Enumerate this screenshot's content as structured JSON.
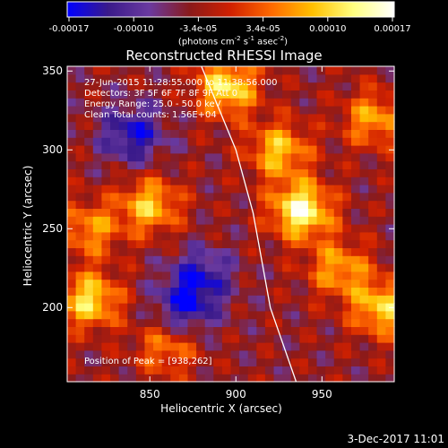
{
  "colorbar": {
    "tick_labels": [
      "-0.00017",
      "-0.00010",
      "-3.4e-05",
      "3.4e-05",
      "0.00010",
      "0.00017"
    ],
    "units_prefix": "(photons cm",
    "units_exp1": "-2",
    "units_mid1": " s",
    "units_exp2": "-1",
    "units_mid2": " asec",
    "units_exp3": "-2",
    "units_suffix": ")",
    "range": [
      -0.00017,
      0.00017
    ]
  },
  "chart_data": {
    "type": "heatmap",
    "title": "Reconstructed RHESSI Image",
    "xlabel": "Heliocentric X (arcsec)",
    "ylabel": "Heliocentric Y (arcsec)",
    "xlim": [
      802,
      992
    ],
    "ylim": [
      153,
      353
    ],
    "xticks": [
      850,
      900,
      950
    ],
    "yticks": [
      200,
      250,
      300,
      350
    ],
    "colormap": [
      "#0000ff",
      "#3a1a8a",
      "#6a3aa0",
      "#8a1a1a",
      "#d02000",
      "#ff6a00",
      "#ffc000",
      "#ffff80",
      "#ffffff"
    ],
    "sources": [
      {
        "x": 938,
        "y": 262,
        "amplitude": 1.0
      },
      {
        "x": 925,
        "y": 300,
        "amplitude": 0.7
      },
      {
        "x": 895,
        "y": 340,
        "amplitude": 0.85
      },
      {
        "x": 960,
        "y": 225,
        "amplitude": 0.6
      },
      {
        "x": 850,
        "y": 265,
        "amplitude": 0.7
      },
      {
        "x": 815,
        "y": 205,
        "amplitude": 0.8
      },
      {
        "x": 815,
        "y": 250,
        "amplitude": 0.55
      },
      {
        "x": 860,
        "y": 175,
        "amplitude": 0.5
      },
      {
        "x": 985,
        "y": 200,
        "amplitude": 0.75
      },
      {
        "x": 980,
        "y": 320,
        "amplitude": 0.6
      },
      {
        "x": 880,
        "y": 220,
        "amplitude": -0.5
      },
      {
        "x": 840,
        "y": 310,
        "amplitude": -0.6
      },
      {
        "x": 870,
        "y": 200,
        "amplitude": -0.55
      }
    ],
    "limb_curve": {
      "x": [
        880,
        900,
        910,
        920,
        935
      ],
      "y": [
        353,
        300,
        260,
        200,
        153
      ]
    },
    "info_lines": [
      "27-Jun-2015 11:28:55.000 to 11:38:56.000",
      "Detectors: 3F 5F 6F 7F 8F 9F Att 0",
      "Energy Range: 25.0 - 50.0 keV",
      "Clean    Total counts: 1.56E+04"
    ],
    "peak_text": "Position of Peak = [938,262]"
  },
  "footer": {
    "date": "3-Dec-2017 11:01"
  }
}
